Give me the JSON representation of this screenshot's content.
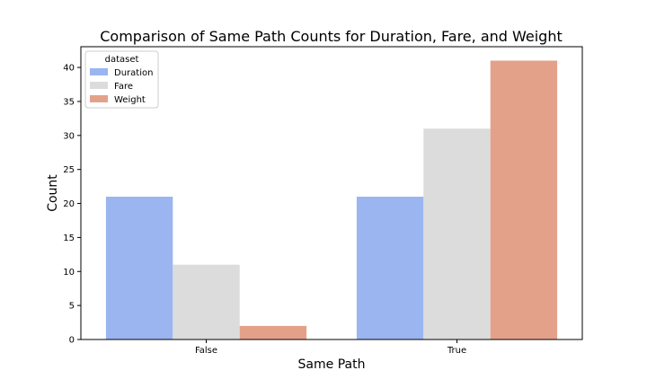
{
  "chart_data": {
    "type": "bar",
    "title": "Comparison of Same Path Counts for Duration, Fare, and Weight",
    "xlabel": "Same Path",
    "ylabel": "Count",
    "categories": [
      "False",
      "True"
    ],
    "series": [
      {
        "name": "Duration",
        "values": [
          21,
          21
        ],
        "color": "#9ab5f0"
      },
      {
        "name": "Fare",
        "values": [
          11,
          31
        ],
        "color": "#dcdcdc"
      },
      {
        "name": "Weight",
        "values": [
          2,
          41
        ],
        "color": "#e4a18a"
      }
    ],
    "ylim": [
      0,
      43.05
    ],
    "yticks": [
      0,
      5,
      10,
      15,
      20,
      25,
      30,
      35,
      40
    ],
    "legend": {
      "title": "dataset",
      "placement": "top-left"
    },
    "grid": false
  }
}
